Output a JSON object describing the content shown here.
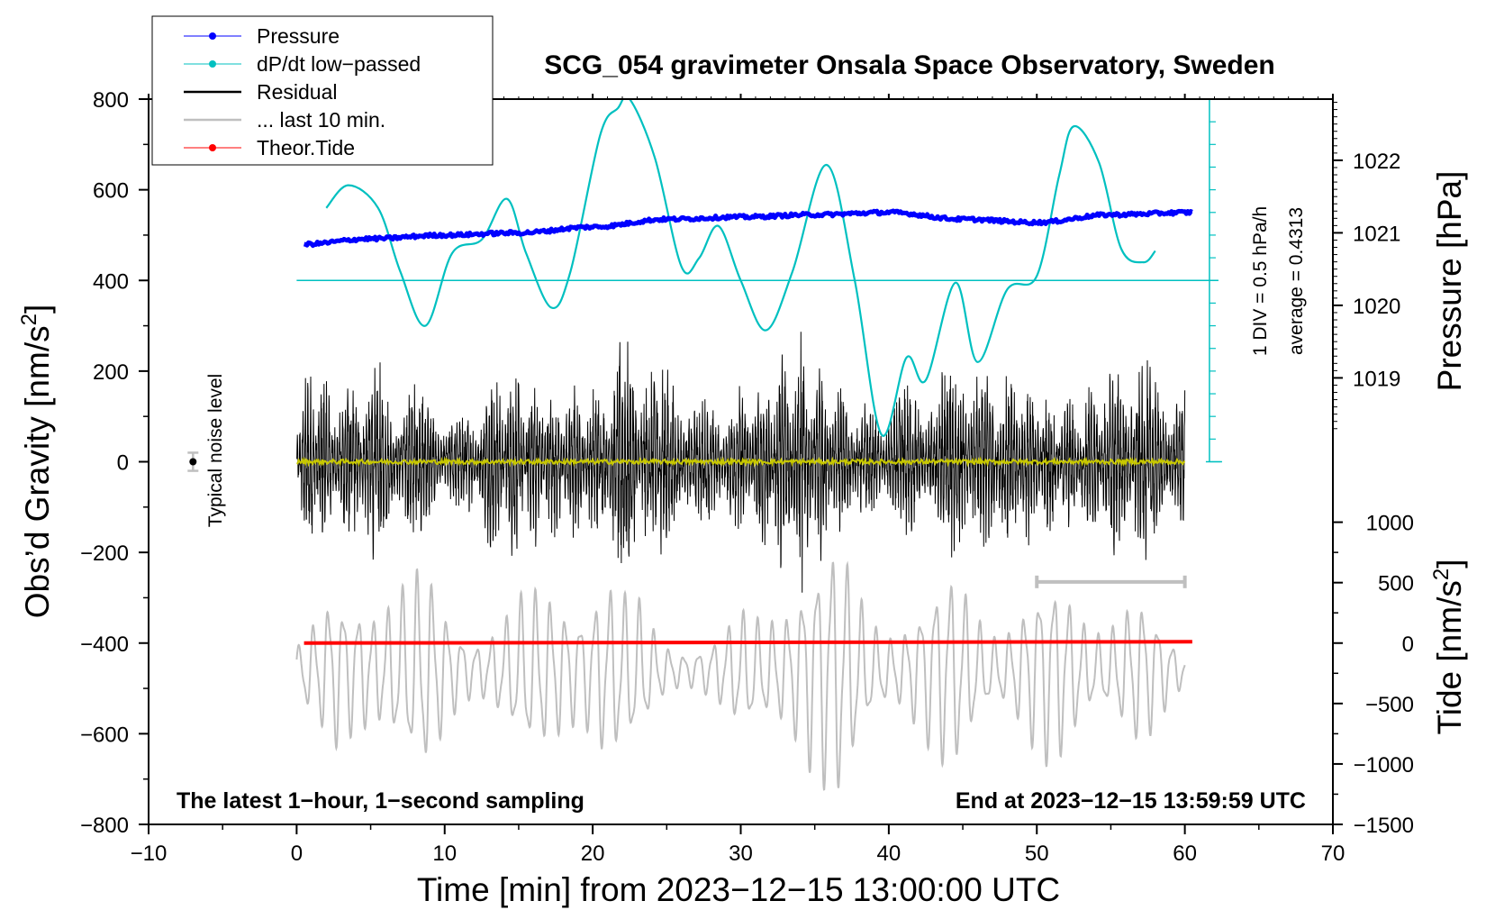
{
  "chart_data": {
    "type": "line",
    "title": "SCG_054 gravimeter Onsala Space Observatory, Sweden",
    "xlabel": "Time [min] from 2023−12−15 13:00:00 UTC",
    "ylabel_main": "Obs’d Gravity [nm/s",
    "ylabel_main_sup": "2",
    "ylabel_main_end": "]",
    "ylabel_pressure": "Pressure [hPa]",
    "ylabel_tide": "Tide [nm/s",
    "ylabel_tide_sup": "2",
    "ylabel_tide_end": "]",
    "xlim": [
      -10,
      70
    ],
    "ylim": [
      -800,
      800
    ],
    "x_ticks": [
      {
        "v": -10,
        "label": "−10"
      },
      {
        "v": 0,
        "label": "0"
      },
      {
        "v": 10,
        "label": "10"
      },
      {
        "v": 20,
        "label": "20"
      },
      {
        "v": 30,
        "label": "30"
      },
      {
        "v": 40,
        "label": "40"
      },
      {
        "v": 50,
        "label": "50"
      },
      {
        "v": 60,
        "label": "60"
      },
      {
        "v": 70,
        "label": "70"
      }
    ],
    "y_ticks": [
      {
        "v": 800,
        "label": "800"
      },
      {
        "v": 600,
        "label": "600"
      },
      {
        "v": 400,
        "label": "400"
      },
      {
        "v": 200,
        "label": "200"
      },
      {
        "v": 0,
        "label": "0"
      },
      {
        "v": -200,
        "label": "−200"
      },
      {
        "v": -400,
        "label": "−400"
      },
      {
        "v": -600,
        "label": "−600"
      },
      {
        "v": -800,
        "label": "−800"
      }
    ],
    "pressure_axis": {
      "unit_per_hpa": 160,
      "ticks": [
        {
          "hpa": 1022,
          "label": "1022"
        },
        {
          "hpa": 1021,
          "label": "1021"
        },
        {
          "hpa": 1020,
          "label": "1020"
        },
        {
          "hpa": 1019,
          "label": "1019"
        }
      ]
    },
    "tide_axis": {
      "ticks": [
        {
          "v": 1000,
          "label": "1000"
        },
        {
          "v": 500,
          "label": "500"
        },
        {
          "v": 0,
          "label": "0"
        },
        {
          "v": -500,
          "label": "−500"
        },
        {
          "v": -1000,
          "label": "−1000"
        },
        {
          "v": -1500,
          "label": "−1500"
        }
      ]
    },
    "legend": {
      "placement": "top-left",
      "entries": [
        {
          "label": "Pressure",
          "color": "#0000ff",
          "style": "line-dot"
        },
        {
          "label": "dP/dt low−passed",
          "color": "#00c0c0",
          "style": "line-dot"
        },
        {
          "label": "Residual",
          "color": "#000000",
          "style": "line"
        },
        {
          "label": "... last 10 min.",
          "color": "#bfbfbf",
          "style": "line"
        },
        {
          "label": "Theor.Tide",
          "color": "#ff0000",
          "style": "line-dot"
        }
      ]
    },
    "annotations": {
      "noise_label": "Typical noise level",
      "noise_point": {
        "x": -7,
        "y": 0,
        "err": 20
      },
      "last10_bar": {
        "x0": 50,
        "x1": 60,
        "y": -265
      },
      "dpdt_div": "1 DIV = 0.5 hPa/h",
      "dpdt_avg": "average = 0.4313",
      "dpdt_zero": 400,
      "dpdt_scale_x": 63,
      "bottom_left": "The latest 1−hour, 1−second sampling",
      "bottom_right": "End at 2023−12−15 13:59:59 UTC"
    },
    "series": [
      {
        "name": "Pressure",
        "color": "#0000ff",
        "x": [
          0.5,
          5,
          10,
          15,
          20,
          25,
          30,
          35,
          40,
          45,
          50,
          55,
          60.5
        ],
        "y": [
          480,
          492,
          500,
          505,
          518,
          535,
          540,
          545,
          550,
          535,
          528,
          545,
          550
        ]
      },
      {
        "name": "dP/dt low-passed",
        "color": "#00c0c0",
        "x": [
          2,
          3.5,
          5.5,
          7,
          8.7,
          10.5,
          12.5,
          14.2,
          15.5,
          17.2,
          18.5,
          20.5,
          21.7,
          22.5,
          24.2,
          26,
          27.2,
          28.5,
          30,
          31.7,
          33.5,
          35.8,
          37.7,
          39.5,
          41.2,
          42.5,
          44.5,
          46,
          48,
          50,
          51.5,
          52.5,
          54.2,
          55.7,
          57.2,
          58
        ],
        "y": [
          560,
          610,
          560,
          420,
          300,
          460,
          490,
          580,
          460,
          340,
          420,
          720,
          780,
          800,
          670,
          430,
          450,
          520,
          400,
          290,
          420,
          655,
          400,
          60,
          230,
          180,
          395,
          220,
          380,
          410,
          630,
          740,
          660,
          470,
          440,
          465
        ]
      },
      {
        "name": "Residual",
        "color": "#000000",
        "envelope_x": [
          0,
          1,
          3,
          5,
          8,
          11,
          14,
          16,
          20,
          22.5,
          25,
          28,
          31,
          34,
          36,
          39,
          42,
          45,
          48,
          52,
          56,
          60
        ],
        "envelope_y": [
          140,
          240,
          180,
          240,
          180,
          120,
          230,
          200,
          180,
          300,
          230,
          140,
          200,
          300,
          200,
          130,
          200,
          250,
          210,
          150,
          240,
          190
        ]
      },
      {
        "name": "... last 10 min.",
        "color": "#bfbfbf",
        "x": [
          0,
          60
        ],
        "center": -460,
        "period_min": 1.0,
        "envelope_x": [
          0,
          1,
          3,
          5,
          8,
          11,
          14,
          16,
          20,
          22.5,
          25,
          28,
          31,
          34,
          36,
          39,
          42,
          45,
          48,
          52,
          56,
          60
        ],
        "envelope_y": [
          60,
          90,
          160,
          250,
          190,
          120,
          130,
          150,
          260,
          140,
          80,
          70,
          120,
          300,
          240,
          150,
          150,
          190,
          140,
          180,
          150,
          60
        ]
      },
      {
        "name": "Theor.Tide",
        "color": "#ff0000",
        "x": [
          0.5,
          60.5
        ],
        "y": [
          -400,
          -397
        ]
      },
      {
        "name": "Residual smoothed",
        "color": "#c8c800",
        "x": [
          0,
          60
        ],
        "y": [
          0,
          0
        ]
      }
    ]
  }
}
